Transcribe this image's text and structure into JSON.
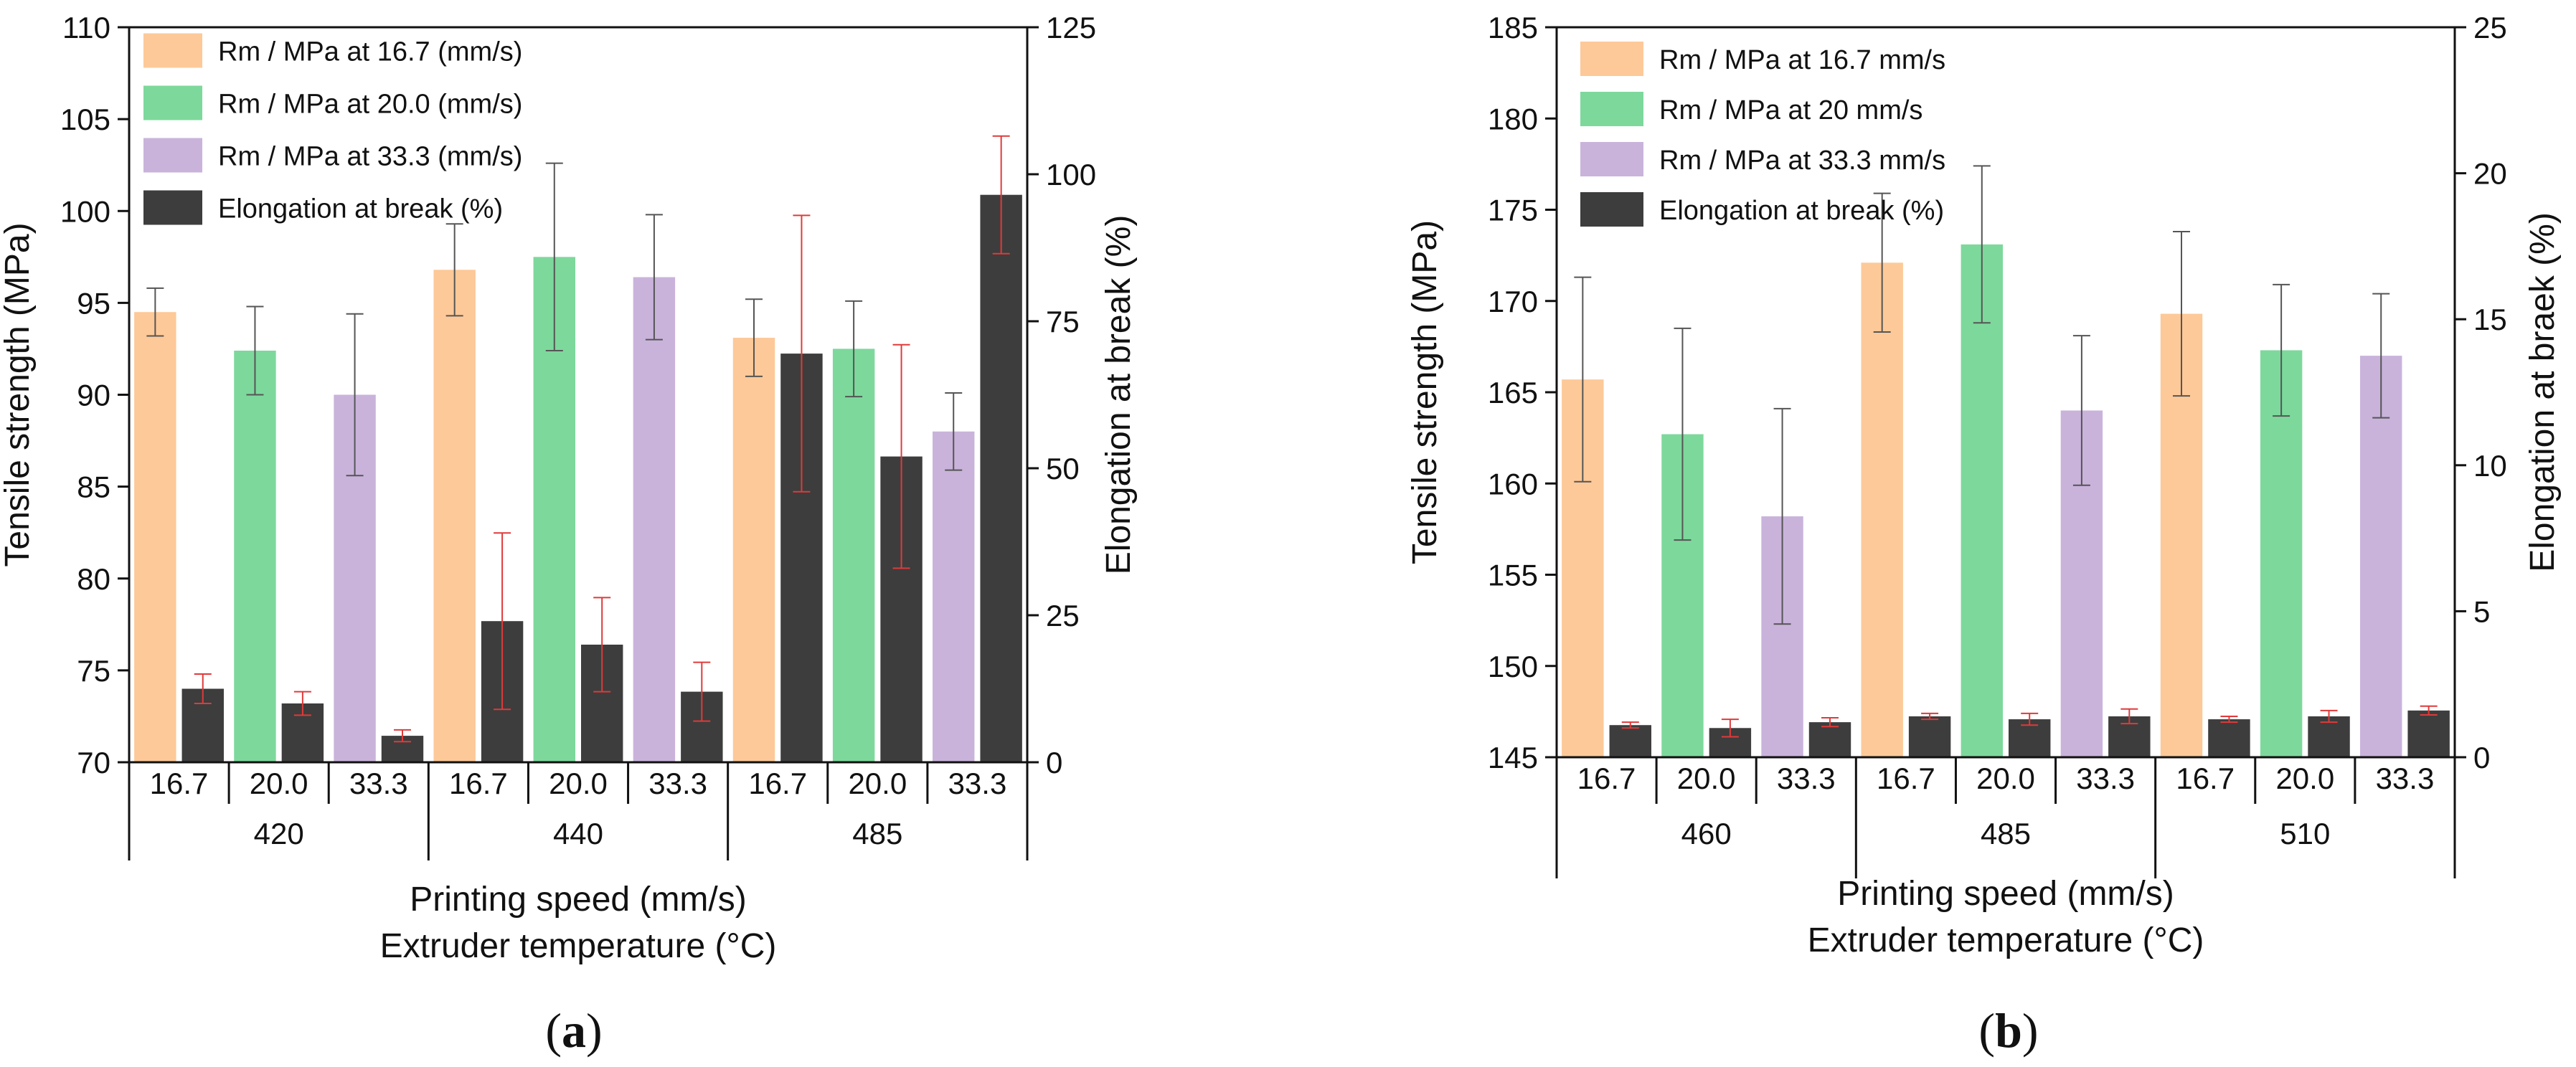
{
  "chart_data": [
    {
      "type": "bar",
      "panel_label": "a",
      "categories": [
        "16.7",
        "20.0",
        "33.3",
        "16.7",
        "20.0",
        "33.3",
        "16.7",
        "20.0",
        "33.3"
      ],
      "groups": [
        {
          "label": "420",
          "span": [
            0,
            2
          ]
        },
        {
          "label": "440",
          "span": [
            3,
            5
          ]
        },
        {
          "label": "485",
          "span": [
            6,
            8
          ]
        }
      ],
      "xlabel": "Printing speed (mm/s)",
      "xlabel2": "Extruder temperature (°C)",
      "ylabel": "Tensile strength (MPa)",
      "ylim": [
        70,
        110
      ],
      "yticks": [
        70,
        75,
        80,
        85,
        90,
        95,
        100,
        105,
        110
      ],
      "ylabel_right": "Elongation at break (%)",
      "ylim_right": [
        0,
        125
      ],
      "yticks_right": [
        0,
        25,
        50,
        75,
        100,
        125
      ],
      "legend_position": "top-left",
      "grid": false,
      "series": [
        {
          "name": "Rm / MPa at 16.7 (mm/s)",
          "color": "#FDC998",
          "axis": "left",
          "values": [
            94.5,
            null,
            null,
            96.8,
            null,
            null,
            93.1,
            null,
            null
          ],
          "errors": [
            1.3,
            null,
            null,
            2.5,
            null,
            null,
            2.1,
            null,
            null
          ]
        },
        {
          "name": "Rm / MPa at 20.0 (mm/s)",
          "color": "#7DD89C",
          "axis": "left",
          "values": [
            null,
            92.4,
            null,
            null,
            97.5,
            null,
            null,
            92.5,
            null
          ],
          "errors": [
            null,
            2.4,
            null,
            null,
            5.1,
            null,
            null,
            2.6,
            null
          ]
        },
        {
          "name": "Rm / MPa at 33.3 (mm/s)",
          "color": "#C9B3DB",
          "axis": "left",
          "values": [
            null,
            null,
            90.0,
            null,
            null,
            96.4,
            null,
            null,
            88.0
          ],
          "errors": [
            null,
            null,
            4.4,
            null,
            null,
            3.4,
            null,
            null,
            2.1
          ]
        },
        {
          "name": "Elongation at break (%)",
          "color": "#3D3D3D",
          "axis": "right",
          "error_color": "#E03A3A",
          "values": [
            12.5,
            10.0,
            4.5,
            24.0,
            20.0,
            12.0,
            69.5,
            52.0,
            96.5
          ],
          "errors": [
            2.5,
            2.0,
            1.0,
            15.0,
            8.0,
            5.0,
            23.5,
            19.0,
            10.0
          ]
        }
      ]
    },
    {
      "type": "bar",
      "panel_label": "b",
      "categories": [
        "16.7",
        "20.0",
        "33.3",
        "16.7",
        "20.0",
        "33.3",
        "16.7",
        "20.0",
        "33.3"
      ],
      "groups": [
        {
          "label": "460",
          "span": [
            0,
            2
          ]
        },
        {
          "label": "485",
          "span": [
            3,
            5
          ]
        },
        {
          "label": "510",
          "span": [
            6,
            8
          ]
        }
      ],
      "xlabel": "Printing speed (mm/s)",
      "xlabel2": "Extruder temperature (°C)",
      "ylabel": "Tensile strength (MPa)",
      "ylim": [
        145,
        185
      ],
      "yticks": [
        145,
        150,
        155,
        160,
        165,
        170,
        175,
        180,
        185
      ],
      "ylabel_right": "Elongation at braek (%)",
      "ylim_right": [
        0,
        25
      ],
      "yticks_right": [
        0,
        5,
        10,
        15,
        20,
        25
      ],
      "legend_position": "top-left",
      "grid": false,
      "series": [
        {
          "name": "Rm / MPa at 16.7 mm/s",
          "color": "#FDC998",
          "axis": "left",
          "values": [
            165.7,
            null,
            null,
            172.1,
            null,
            null,
            169.3,
            null,
            null
          ],
          "errors": [
            5.6,
            null,
            null,
            3.8,
            null,
            null,
            4.5,
            null,
            null
          ]
        },
        {
          "name": "Rm / MPa at 20 mm/s",
          "color": "#7DD89C",
          "axis": "left",
          "values": [
            null,
            162.7,
            null,
            null,
            173.1,
            null,
            null,
            167.3,
            null
          ],
          "errors": [
            null,
            5.8,
            null,
            null,
            4.3,
            null,
            null,
            3.6,
            null
          ]
        },
        {
          "name": "Rm / MPa at 33.3 mm/s",
          "color": "#C9B3DB",
          "axis": "left",
          "values": [
            null,
            null,
            158.2,
            null,
            null,
            164.0,
            null,
            null,
            167.0
          ],
          "errors": [
            null,
            null,
            5.9,
            null,
            null,
            4.1,
            null,
            null,
            3.4
          ]
        },
        {
          "name": "Elongation at break (%)",
          "color": "#3D3D3D",
          "axis": "right",
          "error_color": "#E03A3A",
          "values": [
            1.1,
            1.0,
            1.2,
            1.4,
            1.3,
            1.4,
            1.3,
            1.4,
            1.6
          ],
          "errors": [
            0.1,
            0.3,
            0.15,
            0.1,
            0.2,
            0.25,
            0.1,
            0.2,
            0.15
          ]
        }
      ]
    }
  ]
}
